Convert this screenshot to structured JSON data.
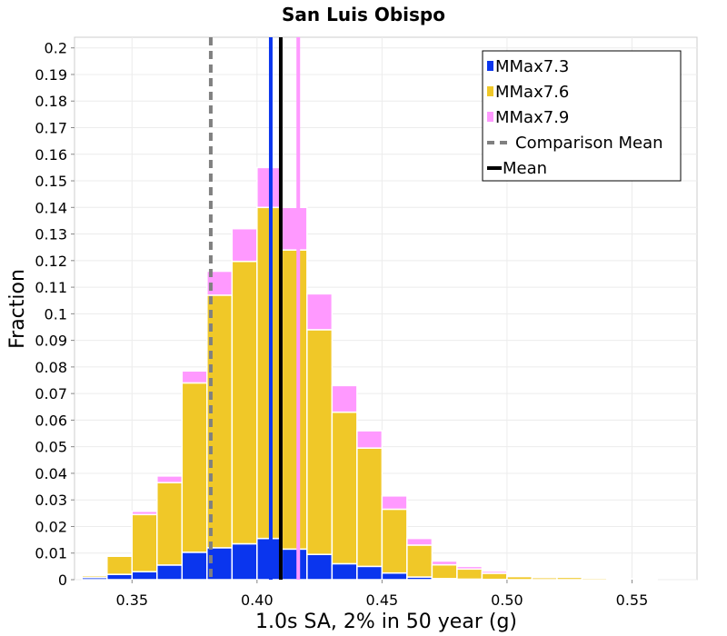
{
  "chart_data": {
    "type": "bar",
    "stacked": true,
    "title": "San Luis Obispo",
    "xlabel": "1.0s SA, 2% in 50 year (g)",
    "ylabel": "Fraction",
    "xlim": [
      0.327,
      0.576
    ],
    "ylim": [
      0,
      0.204
    ],
    "grid": true,
    "legend_position": "top-right",
    "xticks": [
      0.35,
      0.4,
      0.45,
      0.5,
      0.55
    ],
    "xtick_labels": [
      "0.35",
      "0.40",
      "0.45",
      "0.50",
      "0.55"
    ],
    "yticks": [
      0,
      0.01,
      0.02,
      0.03,
      0.04,
      0.05,
      0.06,
      0.07,
      0.08,
      0.09,
      0.1,
      0.11,
      0.12,
      0.13,
      0.14,
      0.15,
      0.16,
      0.17,
      0.18,
      0.19,
      0.2
    ],
    "ytick_labels": [
      "0",
      "0.01",
      "0.02",
      "0.03",
      "0.04",
      "0.05",
      "0.06",
      "0.07",
      "0.08",
      "0.09",
      "0.1",
      "0.11",
      "0.12",
      "0.13",
      "0.14",
      "0.15",
      "0.16",
      "0.17",
      "0.18",
      "0.19",
      "0.2"
    ],
    "bin_width": 0.01,
    "x": [
      0.335,
      0.345,
      0.355,
      0.365,
      0.375,
      0.385,
      0.395,
      0.405,
      0.415,
      0.425,
      0.435,
      0.445,
      0.455,
      0.465,
      0.475,
      0.485,
      0.495,
      0.505,
      0.515,
      0.525,
      0.535,
      0.545,
      0.555,
      0.565
    ],
    "series": [
      {
        "name": "MMax7.3",
        "color": "#0a35ee",
        "values": [
          0.0008,
          0.002,
          0.003,
          0.0055,
          0.0103,
          0.012,
          0.0135,
          0.0155,
          0.0115,
          0.0095,
          0.006,
          0.005,
          0.0025,
          0.001,
          0.0004,
          0.0002,
          0.0001,
          0,
          0,
          0,
          0,
          0,
          0,
          0
        ]
      },
      {
        "name": "MMax7.6",
        "color": "#f0c828",
        "values": [
          0.0007,
          0.0068,
          0.0215,
          0.031,
          0.0637,
          0.095,
          0.1062,
          0.1245,
          0.1125,
          0.0845,
          0.057,
          0.0445,
          0.024,
          0.012,
          0.0052,
          0.0038,
          0.0023,
          0.0012,
          0.0008,
          0.0009,
          0.0006,
          0.0002,
          0.0002,
          0
        ]
      },
      {
        "name": "MMax7.9",
        "color": "#ff99ff",
        "values": [
          0.0004,
          0.0004,
          0.0012,
          0.0025,
          0.0045,
          0.009,
          0.0123,
          0.015,
          0.016,
          0.0135,
          0.01,
          0.0065,
          0.005,
          0.0025,
          0.0014,
          0.001,
          0.0008,
          0.0005,
          0.0003,
          0.0002,
          0.0002,
          0.0001,
          0.0001,
          0
        ]
      }
    ],
    "lines": [
      {
        "name": "Comparison Mean",
        "x": 0.3815,
        "color": "#808080",
        "style": "dashed"
      },
      {
        "name": "Mean",
        "x": 0.4095,
        "color": "#000000",
        "style": "solid"
      },
      {
        "name": "MMax7.3 mean",
        "x": 0.4055,
        "color": "#0a35ee",
        "style": "solid"
      },
      {
        "name": "MMax7.9 mean",
        "x": 0.4165,
        "color": "#ff99ff",
        "style": "solid"
      }
    ],
    "legend": [
      {
        "label": "MMax7.3",
        "kind": "patch",
        "color": "#0a35ee"
      },
      {
        "label": "MMax7.6",
        "kind": "patch",
        "color": "#f0c828"
      },
      {
        "label": "MMax7.9",
        "kind": "patch",
        "color": "#ff99ff"
      },
      {
        "label": "Comparison Mean",
        "kind": "dashed",
        "color": "#808080"
      },
      {
        "label": "Mean",
        "kind": "solid",
        "color": "#000000"
      }
    ]
  }
}
